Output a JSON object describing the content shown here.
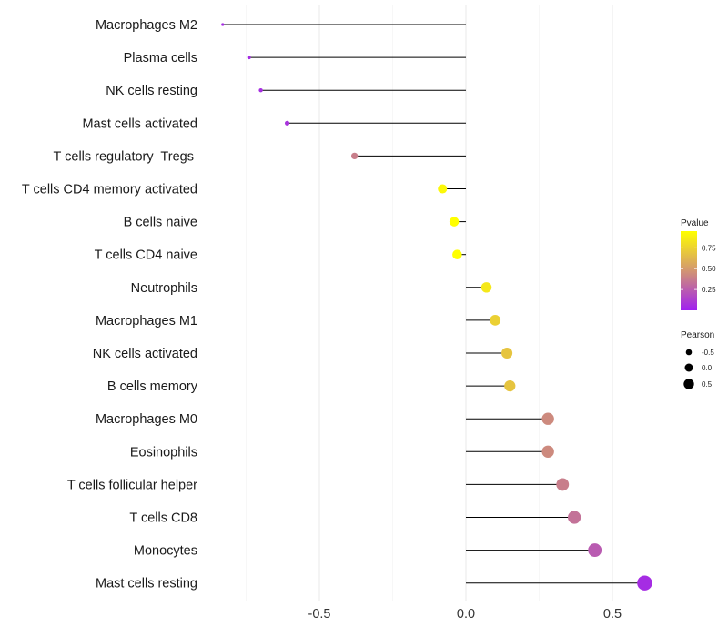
{
  "chart_data": {
    "type": "lollipop",
    "categories": [
      "Macrophages M2",
      "Plasma cells",
      "NK cells resting",
      "Mast cells activated",
      "T cells regulatory  Tregs ",
      "T cells CD4 memory activated",
      "B cells naive",
      "T cells CD4 naive",
      "Neutrophils",
      "Macrophages M1",
      "NK cells activated",
      "B cells memory",
      "Macrophages M0",
      "Eosinophils",
      "T cells follicular helper",
      "T cells CD8",
      "Monocytes",
      "Mast cells resting"
    ],
    "values": [
      -0.83,
      -0.74,
      -0.7,
      -0.61,
      -0.38,
      -0.08,
      -0.04,
      -0.03,
      0.07,
      0.1,
      0.14,
      0.15,
      0.28,
      0.28,
      0.33,
      0.37,
      0.44,
      0.61
    ],
    "pvalues": [
      0.05,
      0.05,
      0.06,
      0.08,
      0.4,
      0.92,
      0.96,
      0.96,
      0.85,
      0.75,
      0.7,
      0.7,
      0.45,
      0.45,
      0.4,
      0.35,
      0.25,
      0.05
    ],
    "xlim": [
      -0.9,
      0.62
    ],
    "xticks": [
      -0.5,
      0.0,
      0.5
    ],
    "xtick_labels": [
      "-0.5",
      "0.0",
      "0.5"
    ],
    "title": "",
    "xlabel": "",
    "ylabel": "",
    "grid": true,
    "legend": {
      "placement": "right",
      "color": {
        "title": "Pvalue",
        "ticks": [
          0.25,
          0.5,
          0.75
        ],
        "tick_labels": [
          "0.25",
          "0.50",
          "0.75"
        ],
        "range": [
          0.0,
          0.95
        ],
        "low_color": "#a020f0",
        "high_color": "#ffff00"
      },
      "size": {
        "title": "Pearson",
        "entries": [
          "-0.5",
          "0.0",
          "0.5"
        ],
        "values": [
          -0.5,
          0.0,
          0.5
        ]
      }
    }
  }
}
